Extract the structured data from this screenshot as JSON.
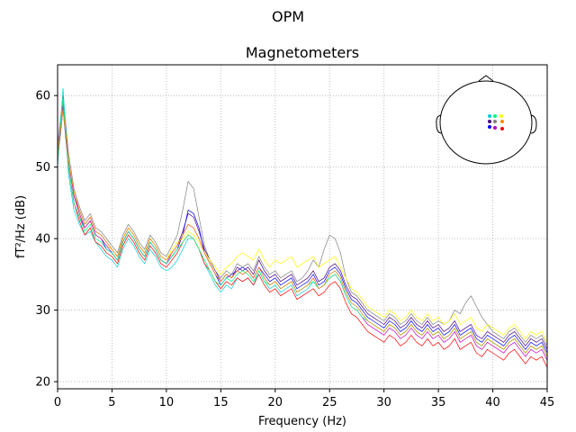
{
  "figure_title": "OPM",
  "chart_data": {
    "type": "line",
    "title": "Magnetometers",
    "xlabel": "Frequency (Hz)",
    "ylabel": "fT²/Hz (dB)",
    "xlim": [
      0,
      45
    ],
    "ylim": [
      19,
      64.3
    ],
    "xticks": [
      0,
      5,
      10,
      15,
      20,
      25,
      30,
      35,
      40,
      45
    ],
    "yticks": [
      20,
      30,
      40,
      50,
      60
    ],
    "grid": true,
    "grid_style": "dotted",
    "legend": "none",
    "sensor_layout_inset": "top-right",
    "x": [
      0,
      0.5,
      1,
      1.5,
      2,
      2.5,
      3,
      3.5,
      4,
      4.5,
      5,
      5.5,
      6,
      6.5,
      7,
      7.5,
      8,
      8.5,
      9,
      9.5,
      10,
      10.5,
      11,
      11.5,
      12,
      12.5,
      13,
      13.5,
      14,
      14.5,
      15,
      15.5,
      16,
      16.5,
      17,
      17.5,
      18,
      18.5,
      19,
      19.5,
      20,
      20.5,
      21,
      21.5,
      22,
      22.5,
      23,
      23.5,
      24,
      24.5,
      25,
      25.5,
      26,
      26.5,
      27,
      27.5,
      28,
      28.5,
      29,
      29.5,
      30,
      30.5,
      31,
      31.5,
      32,
      32.5,
      33,
      33.5,
      34,
      34.5,
      35,
      35.5,
      36,
      36.5,
      37,
      37.5,
      38,
      38.5,
      39,
      39.5,
      40,
      40.5,
      41,
      41.5,
      42,
      42.5,
      43,
      43.5,
      44,
      44.5,
      45
    ],
    "series": [
      {
        "color": "#4b0082",
        "values": [
          52,
          59,
          51,
          46,
          44,
          42,
          43,
          41,
          40.5,
          39.5,
          38.5,
          37.5,
          40,
          41.5,
          40.5,
          39,
          38,
          40,
          39,
          37.5,
          37,
          38,
          39,
          41,
          43.5,
          43,
          41,
          38.5,
          37,
          35.5,
          34,
          35,
          34.5,
          36,
          35.5,
          36,
          35,
          37,
          35.5,
          34.5,
          35,
          34,
          34.5,
          35,
          33.5,
          34,
          34.5,
          35.5,
          34,
          34.5,
          36,
          36.5,
          35.5,
          33.5,
          32,
          31.5,
          30.5,
          29.5,
          29,
          28.5,
          28,
          29,
          28.5,
          27.5,
          28,
          29,
          28,
          27.5,
          28.5,
          27.5,
          28,
          27,
          27.5,
          28.5,
          27,
          27.5,
          28,
          26.5,
          26,
          27,
          26.5,
          26,
          25.5,
          26.5,
          27,
          26,
          25,
          26,
          25.5,
          26,
          24.5
        ]
      },
      {
        "color": "#0000ff",
        "values": [
          51,
          58,
          50,
          45,
          43,
          41.5,
          42.5,
          40.5,
          40,
          38.5,
          38,
          37,
          39.5,
          41,
          40,
          38.5,
          37.5,
          39.5,
          38.5,
          37,
          36.5,
          37.5,
          38.5,
          40.5,
          44,
          43.5,
          41.5,
          38,
          36.5,
          35,
          33.5,
          34.5,
          35,
          35.5,
          36,
          35.5,
          34.5,
          36,
          35,
          34,
          34.5,
          33.5,
          34,
          34.5,
          33,
          33.5,
          34,
          35,
          33.5,
          34,
          35.5,
          36,
          35,
          33,
          31.5,
          31,
          30,
          29,
          28.5,
          28,
          27.5,
          28.5,
          28,
          27,
          27.5,
          28.5,
          27.5,
          27,
          28,
          27,
          27.5,
          26.5,
          27,
          28,
          26.5,
          27,
          27.5,
          26,
          25.5,
          26.5,
          26,
          25.5,
          25,
          26,
          26.5,
          25.5,
          24.5,
          25.5,
          25,
          25.5,
          24
        ]
      },
      {
        "color": "#808080",
        "values": [
          53,
          60,
          52,
          47,
          44.5,
          42.5,
          43.5,
          41.5,
          41,
          40,
          39,
          38,
          40.5,
          42,
          41,
          39.5,
          38.5,
          40.5,
          39.5,
          38,
          37.5,
          39,
          40.5,
          44,
          48,
          47,
          43,
          39,
          37,
          35.5,
          34.5,
          35.5,
          35,
          36.5,
          36,
          36.5,
          35.5,
          37.5,
          36,
          35,
          35.5,
          34.5,
          35,
          35.5,
          34,
          34.5,
          35.5,
          37,
          36,
          38.5,
          40.5,
          40,
          38,
          34.5,
          32.5,
          32,
          31,
          30,
          29.5,
          29,
          28.5,
          29.5,
          29,
          28,
          28.5,
          29.5,
          28.5,
          28,
          29,
          28,
          28.5,
          28,
          28.5,
          30,
          29.5,
          31,
          32,
          30.5,
          29,
          28,
          27,
          26.5,
          26,
          27,
          27.5,
          26.5,
          25.5,
          26.5,
          26,
          26.5,
          25
        ]
      },
      {
        "color": "#00ced1",
        "values": [
          50,
          61,
          49,
          44,
          42,
          40.5,
          41,
          39.5,
          38.5,
          37.5,
          37,
          36,
          38.5,
          40,
          39,
          37.5,
          36.5,
          38.5,
          37.5,
          36,
          35.5,
          36,
          37,
          38.5,
          40,
          40,
          38.5,
          36.5,
          35,
          33.5,
          32.5,
          33.5,
          33,
          34.5,
          34,
          34.5,
          33.5,
          35.5,
          34,
          33,
          33.5,
          32.5,
          33,
          33.5,
          32,
          32.5,
          33,
          34,
          33,
          33.5,
          35,
          35.5,
          34.5,
          32.5,
          31,
          30.5,
          29.5,
          28.5,
          28,
          27.5,
          27,
          28,
          27.5,
          26.5,
          27,
          28,
          27,
          26.5,
          27.5,
          26.5,
          27,
          26,
          26.5,
          27.5,
          26,
          26.5,
          27,
          25.5,
          25,
          26,
          25.5,
          25,
          24.5,
          25.5,
          26,
          25,
          24,
          25,
          24.5,
          25,
          23.5
        ]
      },
      {
        "color": "#ffff00",
        "values": [
          52,
          58,
          51,
          46,
          43.5,
          41.5,
          42.5,
          40.5,
          40,
          39,
          38.5,
          37.5,
          40,
          41.5,
          40.5,
          39,
          38,
          40,
          39,
          37.5,
          37,
          38.5,
          39.5,
          40,
          41,
          40.5,
          39.5,
          38,
          37,
          36,
          35,
          36,
          36.5,
          37.5,
          38,
          37.5,
          37,
          38.5,
          37,
          36,
          37,
          36.5,
          37,
          37.5,
          36,
          36.5,
          37,
          37.5,
          36,
          36.5,
          37,
          37.5,
          36,
          34.5,
          33,
          32.5,
          31.5,
          30.5,
          30,
          29.5,
          29,
          30,
          29.5,
          28.5,
          29,
          30,
          29,
          28.5,
          29.5,
          28.5,
          29,
          28,
          28.5,
          29.5,
          28,
          28.5,
          29,
          27.5,
          27,
          28,
          27.5,
          27,
          26.5,
          27.5,
          28,
          27,
          26,
          27,
          26.5,
          27,
          25.5
        ]
      },
      {
        "color": "#ff0000",
        "values": [
          51,
          59,
          50,
          45,
          42.5,
          40.5,
          41.5,
          39.5,
          39,
          38,
          37.5,
          36.5,
          39,
          40.5,
          39.5,
          38,
          37,
          39,
          38,
          36.5,
          36,
          37,
          38,
          39.5,
          40.5,
          40,
          38.5,
          36.5,
          35.5,
          34,
          33,
          34,
          33.5,
          34.5,
          34,
          34.5,
          33.5,
          35,
          33.5,
          32.5,
          33,
          32,
          32.5,
          33,
          31.5,
          32,
          32.5,
          33,
          32,
          32.5,
          33.5,
          34,
          33,
          31,
          29.5,
          29,
          28,
          27,
          26.5,
          26,
          25.5,
          26.5,
          26,
          25,
          25.5,
          26.5,
          25.5,
          25,
          26,
          25,
          25.5,
          24.5,
          25,
          26,
          24.5,
          25,
          25.5,
          24,
          23.5,
          24.5,
          24,
          23.5,
          23,
          24,
          24.5,
          23.5,
          22.5,
          23.5,
          23,
          23.5,
          22
        ]
      },
      {
        "color": "#c000c0",
        "values": [
          52,
          58.5,
          51,
          46,
          43.5,
          41.5,
          42.5,
          40.5,
          40,
          39,
          38,
          37,
          39.5,
          41,
          40,
          38.5,
          37.5,
          39.5,
          38.5,
          37,
          36.5,
          38,
          39,
          40.5,
          42,
          41.5,
          40,
          38,
          36.5,
          35,
          34,
          35,
          34.5,
          35.5,
          35,
          35.5,
          34.5,
          36,
          34.5,
          33.5,
          34,
          33,
          33.5,
          34,
          32.5,
          33,
          33.5,
          34.5,
          33,
          33.5,
          34.5,
          35,
          34,
          32,
          30.5,
          30,
          29,
          28,
          27.5,
          27,
          26.5,
          27.5,
          27,
          26,
          26.5,
          27.5,
          26.5,
          26,
          27,
          26,
          26.5,
          25.5,
          26,
          27,
          25.5,
          26,
          26.5,
          25,
          24.5,
          25.5,
          25,
          24.5,
          24,
          25,
          25.5,
          24.5,
          23.5,
          24.5,
          24,
          24.5,
          23
        ]
      },
      {
        "color": "#00ff7f",
        "values": [
          51,
          59.5,
          50,
          45,
          43,
          41,
          42,
          40,
          39.5,
          38.5,
          38,
          37,
          39.5,
          41,
          40,
          38.5,
          37.5,
          39.5,
          38.5,
          37,
          36.5,
          37.5,
          38.5,
          39.5,
          40.5,
          40,
          38.5,
          37,
          35.5,
          34,
          33.5,
          34.5,
          34,
          35,
          35.5,
          35,
          34,
          35.5,
          34,
          33.5,
          34,
          33,
          33.5,
          34,
          32.5,
          33,
          33.5,
          34,
          33,
          33.5,
          34.5,
          35,
          34,
          32,
          30.5,
          30,
          29,
          28.5,
          28,
          27.5,
          27,
          28,
          27.5,
          26.5,
          27,
          28,
          27,
          26.5,
          27.5,
          26.5,
          27,
          26,
          26.5,
          27.5,
          26,
          26.5,
          27,
          25.5,
          25,
          26,
          25.5,
          25,
          24.5,
          25.5,
          26,
          25,
          24,
          25,
          24.5,
          25,
          23.5
        ]
      },
      {
        "color": "#ff8c00",
        "values": [
          52,
          58,
          51,
          46.5,
          44,
          42,
          43,
          41,
          40.5,
          39.5,
          38.5,
          37.5,
          40,
          41.5,
          40.5,
          39,
          38,
          40,
          39,
          37.5,
          37,
          38,
          39,
          40.5,
          42,
          41.5,
          40,
          38,
          36.5,
          35,
          34,
          35,
          34.5,
          35.5,
          35,
          35.5,
          34.5,
          36,
          34.5,
          33.5,
          34,
          33,
          33.5,
          34,
          32.5,
          33,
          33.5,
          34.5,
          33,
          33.5,
          35,
          35.5,
          34.5,
          32.5,
          31,
          30.5,
          29.5,
          28.5,
          28,
          27.5,
          27,
          28,
          27.5,
          26.5,
          27,
          28,
          27,
          26.5,
          27.5,
          26.5,
          27,
          26,
          26.5,
          27.5,
          26,
          26.5,
          27,
          25.5,
          25,
          26,
          25.5,
          25,
          24.5,
          25.5,
          26,
          25,
          24,
          25,
          24.5,
          25,
          23.5
        ]
      }
    ]
  }
}
